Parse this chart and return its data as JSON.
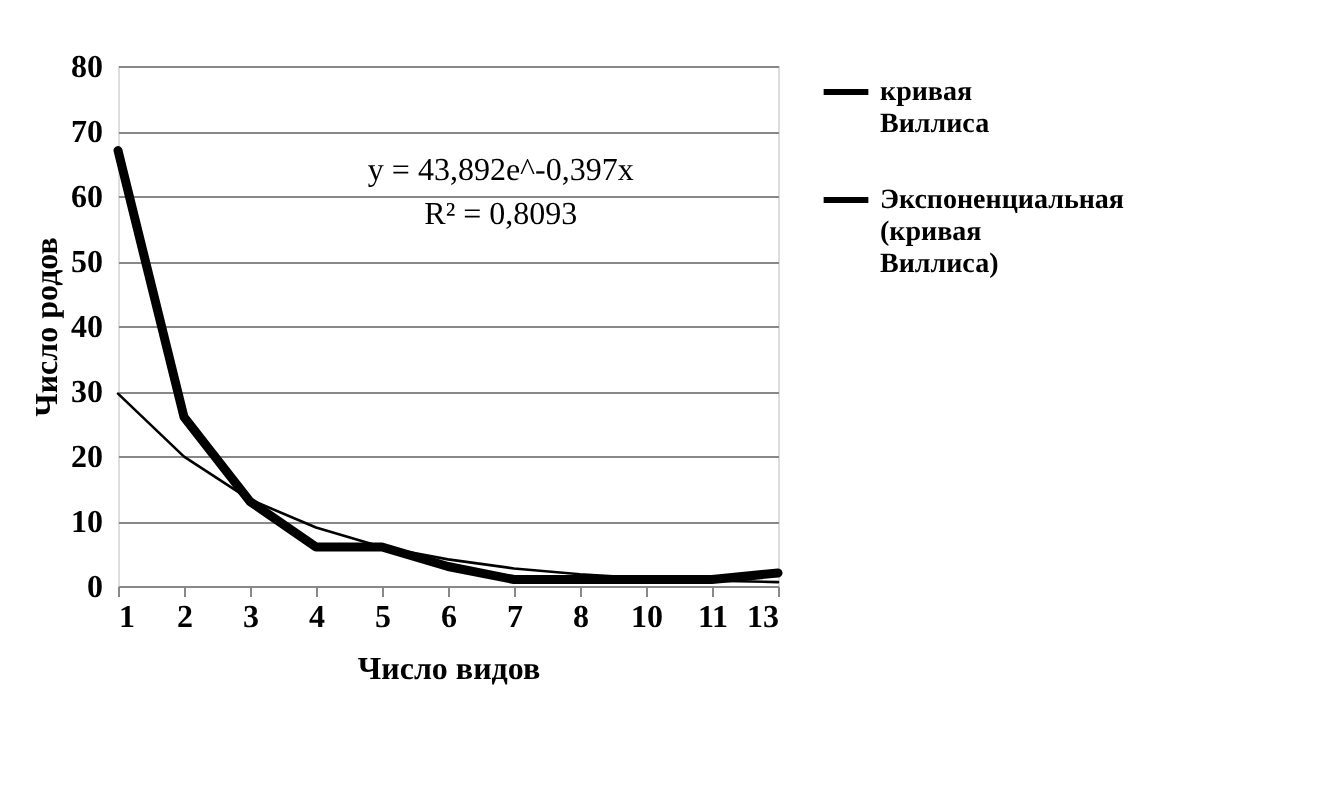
{
  "chart_data": {
    "type": "line",
    "xlabel": "Число видов",
    "ylabel": "Число родов",
    "categories": [
      "1",
      "2",
      "3",
      "4",
      "5",
      "6",
      "7",
      "8",
      "10",
      "11",
      "13"
    ],
    "series": [
      {
        "name": "кривая Виллиса",
        "color": "#000000",
        "values": [
          67,
          26,
          13,
          6,
          6,
          3,
          1,
          1,
          1,
          1,
          2
        ]
      },
      {
        "name": "Экспоненциальная (кривая Виллиса)",
        "color": "#000000",
        "values": [
          29.6,
          19.9,
          13.3,
          9.0,
          6.0,
          4.1,
          2.7,
          1.8,
          1.2,
          0.8,
          0.6
        ]
      }
    ],
    "ylim": [
      0,
      80
    ],
    "yticks": [
      0,
      10,
      20,
      30,
      40,
      50,
      60,
      70,
      80
    ],
    "annotations": [
      "y = 43,892e^-0,397x",
      "R² = 0,8093"
    ],
    "grid": "y",
    "legend": "right",
    "marker": "none",
    "line_style": "solid"
  }
}
